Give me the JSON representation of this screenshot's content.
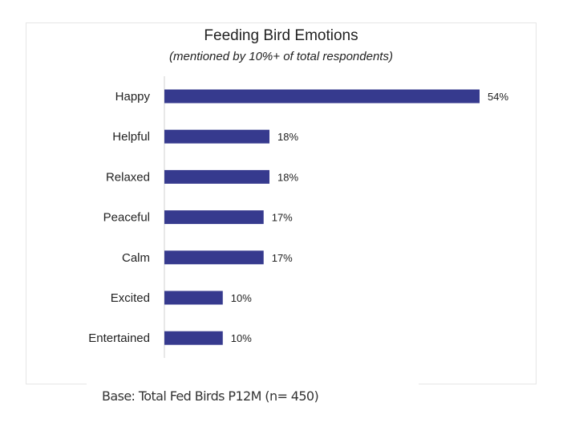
{
  "chart_data": {
    "type": "bar",
    "orientation": "horizontal",
    "title": "Feeding Bird Emotions",
    "subtitle": "(mentioned by 10%+ of total respondents)",
    "categories": [
      "Happy",
      "Helpful",
      "Relaxed",
      "Peaceful",
      "Calm",
      "Excited",
      "Entertained"
    ],
    "values": [
      54,
      18,
      18,
      17,
      17,
      10,
      10
    ],
    "data_labels": [
      "54%",
      "18%",
      "18%",
      "17%",
      "17%",
      "10%",
      "10%"
    ],
    "xlim": [
      0,
      54
    ],
    "grid": false,
    "bar_color": "#363a8e",
    "footnote": "Base: Total Fed Birds P12M (n= 450)"
  }
}
